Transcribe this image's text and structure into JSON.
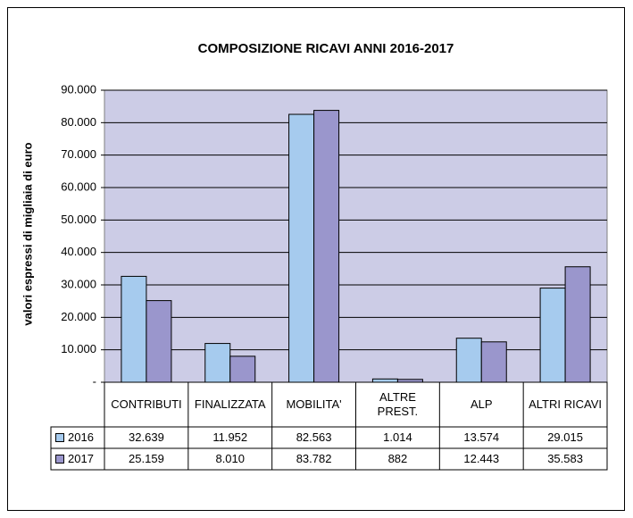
{
  "chart_data": {
    "type": "bar",
    "title": "COMPOSIZIONE RICAVI ANNI 2016-2017",
    "y_label": "valori espressi di migliaia di euro",
    "categories": [
      "CONTRIBUTI",
      "FINALIZZATA",
      "MOBILITA'",
      "ALTRE PREST.",
      "ALP",
      "ALTRI RICAVI"
    ],
    "series": [
      {
        "name": "2016",
        "color": "#a6cbee",
        "values": [
          32639,
          11952,
          82563,
          1014,
          13574,
          29015
        ],
        "value_labels": [
          "32.639",
          "11.952",
          "82.563",
          "1.014",
          "13.574",
          "29.015"
        ]
      },
      {
        "name": "2017",
        "color": "#9a96cc",
        "values": [
          25159,
          8010,
          83782,
          882,
          12443,
          35583
        ],
        "value_labels": [
          "25.159",
          "8.010",
          "83.782",
          "882",
          "12.443",
          "35.583"
        ]
      }
    ],
    "ylim": [
      0,
      90000
    ],
    "yticks": [
      {
        "value": 0,
        "label": "-"
      },
      {
        "value": 10000,
        "label": "10.000"
      },
      {
        "value": 20000,
        "label": "20.000"
      },
      {
        "value": 30000,
        "label": "30.000"
      },
      {
        "value": 40000,
        "label": "40.000"
      },
      {
        "value": 50000,
        "label": "50.000"
      },
      {
        "value": 60000,
        "label": "60.000"
      },
      {
        "value": 70000,
        "label": "70.000"
      },
      {
        "value": 80000,
        "label": "80.000"
      },
      {
        "value": 90000,
        "label": "90.000"
      }
    ],
    "grid": true,
    "plot_background": "#cccce6"
  }
}
